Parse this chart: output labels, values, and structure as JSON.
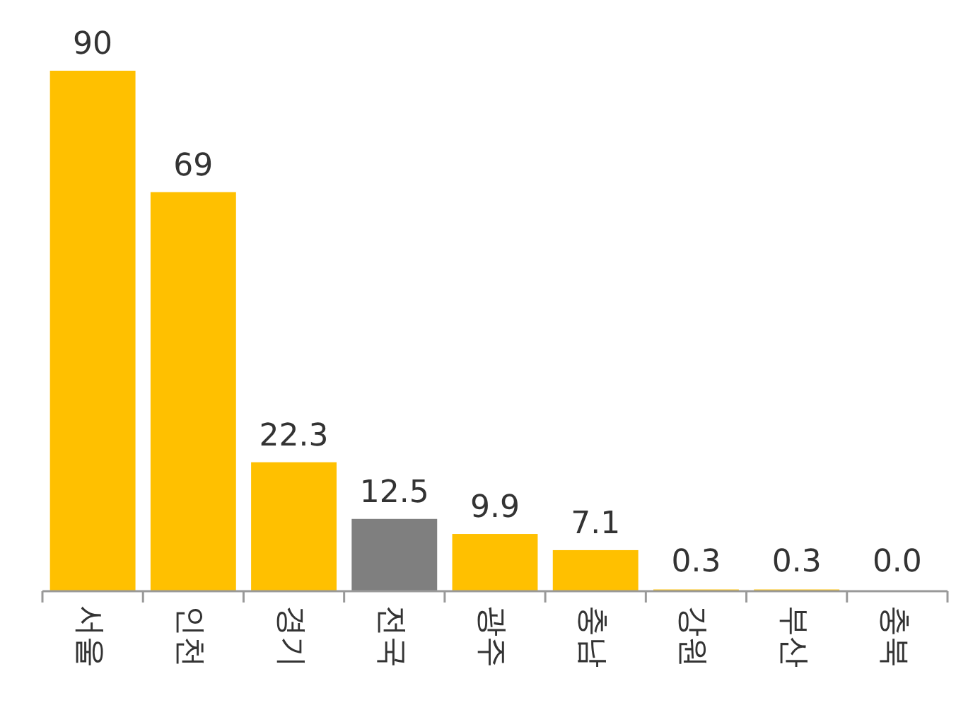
{
  "chart_data": {
    "type": "bar",
    "categories": [
      "서울",
      "인천",
      "경기",
      "전국",
      "광주",
      "충남",
      "강원",
      "부산",
      "충북"
    ],
    "values": [
      90,
      69,
      22.3,
      12.5,
      9.9,
      7.1,
      0.3,
      0.3,
      0.0
    ],
    "value_labels": [
      "90",
      "69",
      "22.3",
      "12.5",
      "9.9",
      "7.1",
      "0.3",
      "0.3",
      "0.0"
    ],
    "colors": [
      "#ffc000",
      "#ffc000",
      "#ffc000",
      "#7f7f7f",
      "#ffc000",
      "#ffc000",
      "#ffc000",
      "#ffc000",
      "#ffc000"
    ]
  }
}
